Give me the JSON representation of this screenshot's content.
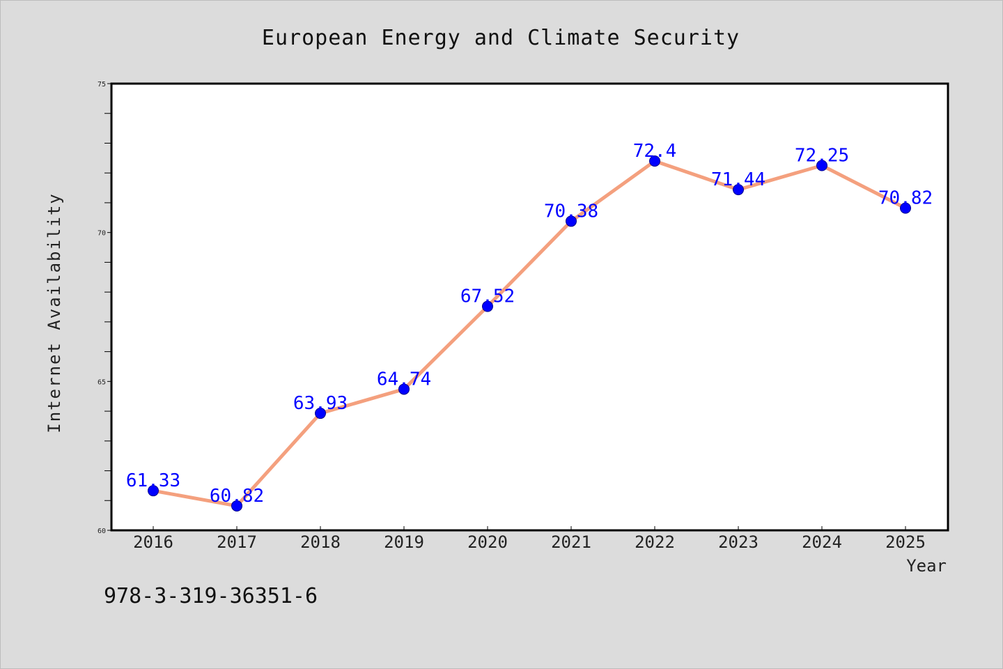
{
  "chart_data": {
    "type": "line",
    "title": "European Energy and Climate Security",
    "xlabel": "Year",
    "ylabel": "Internet Availability",
    "categories": [
      "2016",
      "2017",
      "2018",
      "2019",
      "2020",
      "2021",
      "2022",
      "2023",
      "2024",
      "2025"
    ],
    "series": [
      {
        "values": [
          61.33,
          60.82,
          63.93,
          64.74,
          67.52,
          70.38,
          72.4,
          71.44,
          72.25,
          70.82
        ],
        "labels": [
          "61.33",
          "60.82",
          "63.93",
          "64.74",
          "67.52",
          "70.38",
          "72.4",
          "71.44",
          "72.25",
          "70.82"
        ]
      }
    ],
    "ylim": [
      60,
      75
    ],
    "yticks": [
      "60",
      "65",
      "70",
      "75"
    ],
    "grid": false,
    "colors": {
      "line": "#f4a07e",
      "marker": "#0000ff",
      "label": "#0000ff",
      "plot_background": "#ffffff",
      "figure_background": "#dcdcdc"
    }
  },
  "footnote": "978-3-319-36351-6"
}
